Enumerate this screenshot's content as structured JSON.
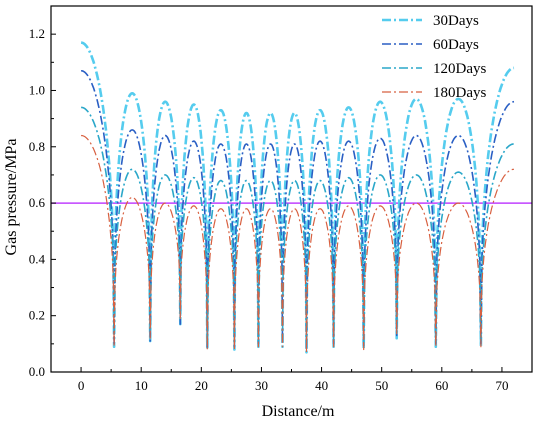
{
  "chart_data": {
    "type": "line",
    "title": "",
    "xlabel": "Distance/m",
    "ylabel": "Gas pressure/MPa",
    "xlim": [
      -5,
      75
    ],
    "ylim": [
      0,
      1.3
    ],
    "xticks": [
      0,
      10,
      20,
      30,
      40,
      50,
      60,
      70
    ],
    "yticks": [
      0.0,
      0.2,
      0.4,
      0.6,
      0.8,
      1.0,
      1.2
    ],
    "grid": false,
    "legend_position": "top-right",
    "reference_line": {
      "y": 0.6,
      "color": "#c040ff"
    },
    "troughs": [
      {
        "x": 5.5,
        "v": [
          0.09,
          0.1,
          0.13,
          0.09
        ]
      },
      {
        "x": 11.5,
        "v": [
          0.11,
          0.11,
          0.14,
          0.12
        ]
      },
      {
        "x": 16.5,
        "v": [
          0.17,
          0.17,
          0.2,
          0.19
        ]
      },
      {
        "x": 21.0,
        "v": [
          0.08,
          0.09,
          0.1,
          0.08
        ]
      },
      {
        "x": 25.5,
        "v": [
          0.08,
          0.09,
          0.1,
          0.08
        ]
      },
      {
        "x": 29.5,
        "v": [
          0.09,
          0.1,
          0.11,
          0.09
        ]
      },
      {
        "x": 33.5,
        "v": [
          0.09,
          0.1,
          0.11,
          0.09
        ]
      },
      {
        "x": 37.5,
        "v": [
          0.07,
          0.08,
          0.09,
          0.07
        ]
      },
      {
        "x": 42.0,
        "v": [
          0.09,
          0.1,
          0.11,
          0.09
        ]
      },
      {
        "x": 47.0,
        "v": [
          0.08,
          0.09,
          0.1,
          0.08
        ]
      },
      {
        "x": 52.5,
        "v": [
          0.12,
          0.13,
          0.14,
          0.13
        ]
      },
      {
        "x": 59.0,
        "v": [
          0.09,
          0.1,
          0.11,
          0.09
        ]
      },
      {
        "x": 66.5,
        "v": [
          0.09,
          0.1,
          0.11,
          0.09
        ]
      }
    ],
    "series": [
      {
        "name": "30Days",
        "color": "#55ccee",
        "dash": "dashdot",
        "x_end": 72,
        "start": 1.17,
        "end": 1.08,
        "peaks": [
          0.99,
          0.96,
          0.95,
          0.93,
          0.92,
          0.92,
          0.92,
          0.93,
          0.94,
          0.96,
          0.97,
          0.97
        ]
      },
      {
        "name": "60Days",
        "color": "#2a5fc4",
        "dash": "dashdot",
        "x_end": 72,
        "start": 1.07,
        "end": 0.96,
        "peaks": [
          0.86,
          0.84,
          0.82,
          0.81,
          0.81,
          0.81,
          0.81,
          0.82,
          0.82,
          0.83,
          0.84,
          0.84
        ]
      },
      {
        "name": "120Days",
        "color": "#2aa7c9",
        "dash": "dashdot",
        "x_end": 72,
        "start": 0.94,
        "end": 0.81,
        "peaks": [
          0.72,
          0.7,
          0.69,
          0.68,
          0.68,
          0.68,
          0.68,
          0.68,
          0.69,
          0.7,
          0.7,
          0.71
        ]
      },
      {
        "name": "180Days",
        "color": "#d86040",
        "dash": "dashdot",
        "x_end": 72,
        "start": 0.84,
        "end": 0.72,
        "peaks": [
          0.62,
          0.6,
          0.59,
          0.58,
          0.58,
          0.58,
          0.58,
          0.58,
          0.59,
          0.59,
          0.6,
          0.6
        ]
      }
    ]
  }
}
